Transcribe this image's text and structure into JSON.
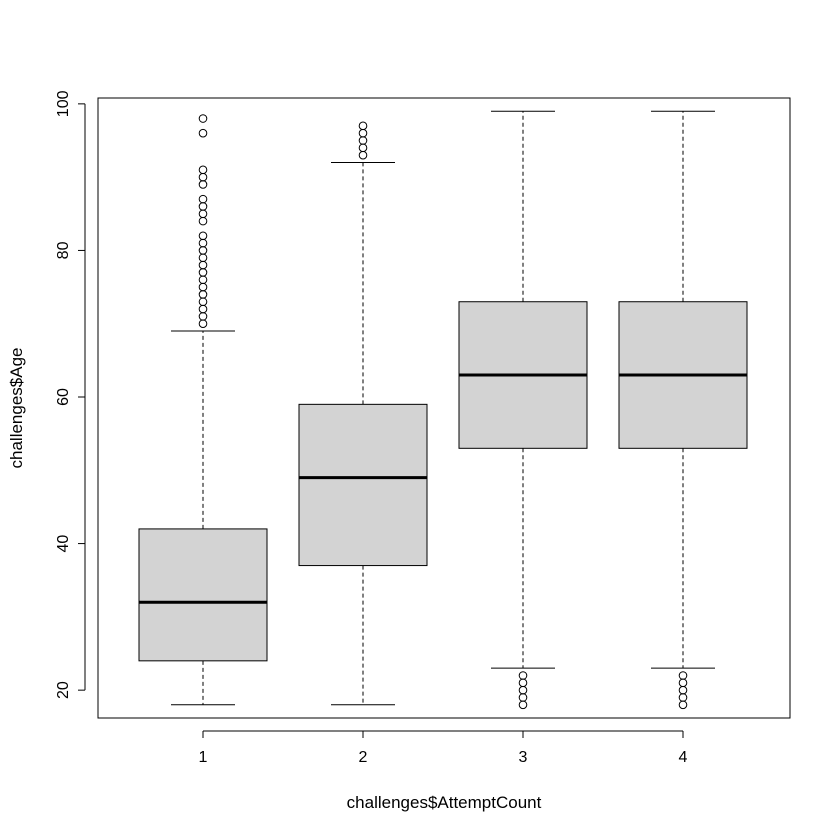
{
  "chart_data": {
    "type": "boxplot",
    "title": "",
    "xlabel": "challenges$AttemptCount",
    "ylabel": "challenges$Age",
    "categories": [
      "1",
      "2",
      "3",
      "4"
    ],
    "yticks": [
      "20",
      "40",
      "60",
      "80",
      "100"
    ],
    "ylim": [
      16.2,
      100.8
    ],
    "grid": false,
    "box_fill": "#d3d3d3",
    "boxes": [
      {
        "category": "1",
        "whisker_low": 18,
        "q1": 24,
        "median": 32,
        "q3": 42,
        "whisker_high": 69,
        "outliers": [
          70,
          71,
          72,
          73,
          74,
          75,
          76,
          77,
          78,
          79,
          80,
          81,
          82,
          84,
          85,
          86,
          87,
          89,
          90,
          91,
          96,
          98
        ]
      },
      {
        "category": "2",
        "whisker_low": 18,
        "q1": 37,
        "median": 49,
        "q3": 59,
        "whisker_high": 92,
        "outliers": [
          93,
          94,
          95,
          96,
          97
        ]
      },
      {
        "category": "3",
        "whisker_low": 23,
        "q1": 53,
        "median": 63,
        "q3": 73,
        "whisker_high": 99,
        "outliers": [
          18,
          19,
          20,
          21,
          22
        ]
      },
      {
        "category": "4",
        "whisker_low": 23,
        "q1": 53,
        "median": 63,
        "q3": 73,
        "whisker_high": 99,
        "outliers": [
          18,
          19,
          20,
          21,
          22
        ]
      }
    ]
  }
}
